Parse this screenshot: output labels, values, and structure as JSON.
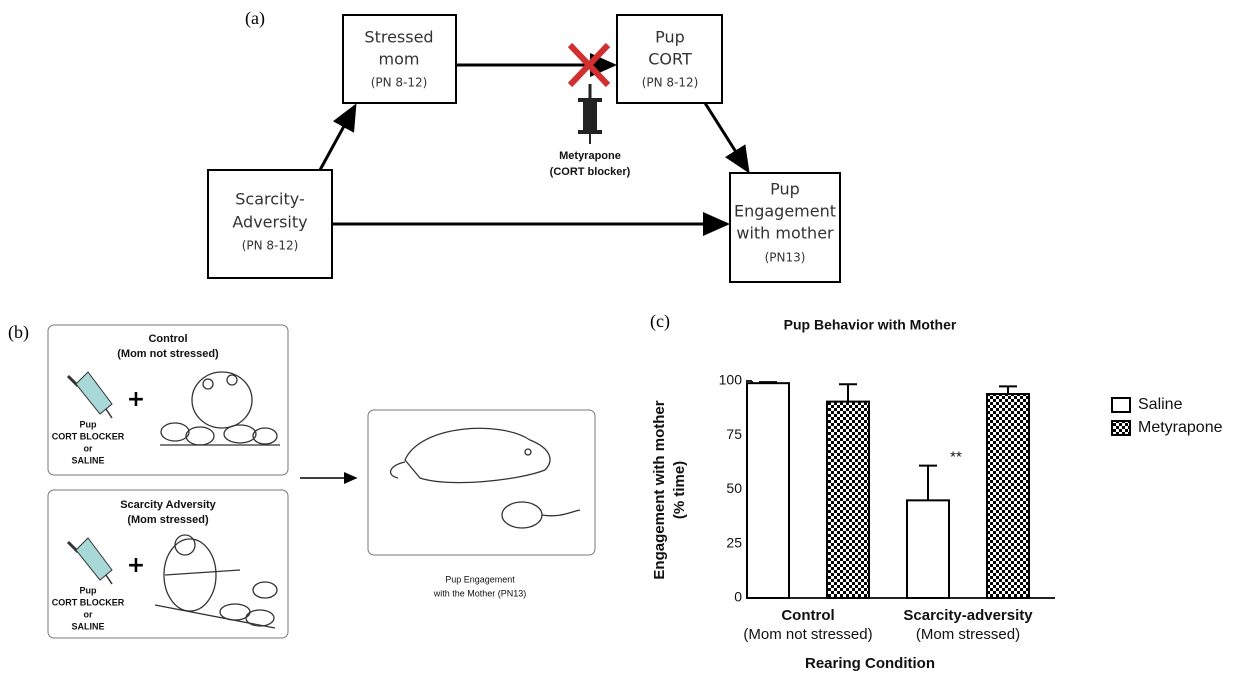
{
  "panel_a": {
    "label": "(a)",
    "nodes": [
      {
        "lines": [
          "Stressed",
          "mom",
          "(PN 8-12)"
        ]
      },
      {
        "lines": [
          "Pup",
          "CORT",
          "(PN 8-12)"
        ]
      },
      {
        "lines": [
          "Scarcity-",
          "Adversity",
          "(PN 8-12)"
        ]
      },
      {
        "lines": [
          "Pup",
          "Engagement",
          "with mother",
          "(PN13)"
        ]
      }
    ],
    "annotation": [
      "Metyrapone",
      "(CORT blocker)"
    ]
  },
  "panel_b": {
    "label": "(b)",
    "boxes": [
      {
        "title": [
          "Control",
          "(Mom not stressed)"
        ],
        "labels": [
          "Pup",
          "CORT BLOCKER",
          "or",
          "SALINE"
        ]
      },
      {
        "title": [
          "Scarcity Adversity",
          "(Mom stressed)"
        ],
        "labels": [
          "Pup",
          "CORT BLOCKER",
          "or",
          "SALINE"
        ]
      }
    ],
    "caption": [
      "Pup Engagement",
      "with the Mother (PN13)"
    ]
  },
  "panel_c_label": "(c)",
  "chart_data": {
    "type": "bar",
    "title": "Pup Behavior with Mother",
    "x_label": "Rearing Condition",
    "y_label": [
      "Engagement with mother",
      "(% time)"
    ],
    "categories": [
      [
        "Control",
        "(Mom not stressed)"
      ],
      [
        "Scarcity-adversity",
        "(Mom stressed)"
      ]
    ],
    "series": [
      {
        "name": "Saline",
        "color": "#000000",
        "fill": "plain",
        "values": [
          99,
          45
        ],
        "errors": [
          0.5,
          16
        ]
      },
      {
        "name": "Metyrapone",
        "color": "#000000",
        "fill": "checkered",
        "values": [
          90.5,
          94
        ],
        "errors": [
          8,
          3.5
        ]
      }
    ],
    "annotations": [
      {
        "text": "**",
        "series": 0,
        "index": 1
      }
    ],
    "ylim": [
      0,
      100
    ],
    "yticks": [
      0,
      25,
      50,
      75,
      100
    ],
    "grid": false,
    "legend": "right"
  }
}
